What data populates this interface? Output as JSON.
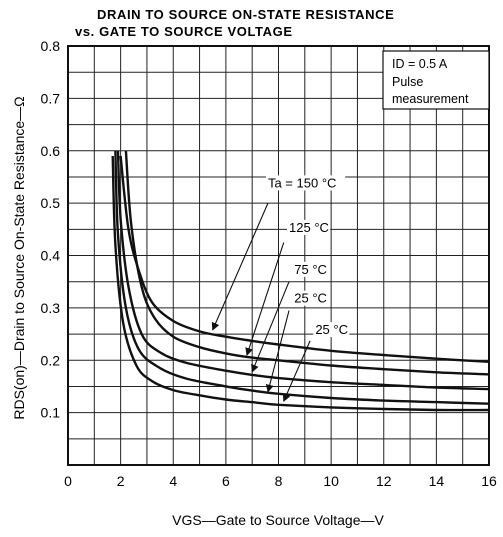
{
  "chart_data": {
    "type": "line",
    "title_line1": "DRAIN TO SOURCE ON-STATE RESISTANCE",
    "title_line2": "vs. GATE TO SOURCE VOLTAGE",
    "xlabel": "VGS—Gate to Source Voltage—V",
    "ylabel": "RDS(on)—Drain to Source On-State Resistance—Ω",
    "xlim": [
      0,
      16
    ],
    "ylim": [
      0,
      0.8
    ],
    "x_ticks": [
      "0",
      "2",
      "4",
      "6",
      "8",
      "10",
      "12",
      "14",
      "16"
    ],
    "y_ticks": [
      "0.1",
      "0.2",
      "0.3",
      "0.4",
      "0.5",
      "0.6",
      "0.7",
      "0.8"
    ],
    "grid": true,
    "conditions": [
      "ID = 0.5 A",
      "Pulse",
      "measurement"
    ],
    "series": [
      {
        "name": "Ta = 150 °C",
        "points": [
          [
            2.0,
            0.59
          ],
          [
            2.3,
            0.45
          ],
          [
            2.7,
            0.37
          ],
          [
            3.2,
            0.31
          ],
          [
            4,
            0.275
          ],
          [
            5,
            0.255
          ],
          [
            6,
            0.245
          ],
          [
            7,
            0.237
          ],
          [
            8,
            0.23
          ],
          [
            10,
            0.218
          ],
          [
            12,
            0.21
          ],
          [
            14,
            0.203
          ],
          [
            16,
            0.197
          ]
        ]
      },
      {
        "name": "125 °C",
        "points": [
          [
            2.2,
            0.6
          ],
          [
            2.4,
            0.46
          ],
          [
            2.8,
            0.34
          ],
          [
            3.3,
            0.28
          ],
          [
            4,
            0.245
          ],
          [
            5,
            0.225
          ],
          [
            6,
            0.213
          ],
          [
            7,
            0.205
          ],
          [
            8,
            0.2
          ],
          [
            10,
            0.19
          ],
          [
            12,
            0.183
          ],
          [
            14,
            0.177
          ],
          [
            16,
            0.173
          ]
        ]
      },
      {
        "name": "75 °C",
        "points": [
          [
            1.9,
            0.6
          ],
          [
            2.0,
            0.47
          ],
          [
            2.3,
            0.34
          ],
          [
            2.8,
            0.25
          ],
          [
            3.5,
            0.215
          ],
          [
            4.5,
            0.195
          ],
          [
            6,
            0.18
          ],
          [
            7,
            0.172
          ],
          [
            8,
            0.166
          ],
          [
            10,
            0.158
          ],
          [
            12,
            0.153
          ],
          [
            14,
            0.148
          ],
          [
            16,
            0.145
          ]
        ]
      },
      {
        "name": "25 °C",
        "points": [
          [
            1.8,
            0.6
          ],
          [
            1.9,
            0.44
          ],
          [
            2.2,
            0.3
          ],
          [
            2.7,
            0.22
          ],
          [
            3.5,
            0.185
          ],
          [
            4.5,
            0.165
          ],
          [
            6,
            0.15
          ],
          [
            7,
            0.142
          ],
          [
            8,
            0.136
          ],
          [
            10,
            0.128
          ],
          [
            12,
            0.123
          ],
          [
            14,
            0.12
          ],
          [
            16,
            0.117
          ]
        ]
      },
      {
        "name": "25 °C",
        "points": [
          [
            1.7,
            0.59
          ],
          [
            1.8,
            0.42
          ],
          [
            2.1,
            0.27
          ],
          [
            2.6,
            0.19
          ],
          [
            3.2,
            0.16
          ],
          [
            4,
            0.143
          ],
          [
            5,
            0.133
          ],
          [
            6,
            0.125
          ],
          [
            7,
            0.12
          ],
          [
            8,
            0.115
          ],
          [
            10,
            0.11
          ],
          [
            12,
            0.107
          ],
          [
            14,
            0.105
          ],
          [
            16,
            0.105
          ]
        ]
      }
    ],
    "annotations": [
      {
        "text": "Ta = 150 °C",
        "label_pos": [
          7.6,
          0.53
        ],
        "arrow_from": [
          7.6,
          0.5
        ],
        "arrow_to": [
          5.5,
          0.258
        ]
      },
      {
        "text": "125 °C",
        "label_pos": [
          8.4,
          0.445
        ],
        "arrow_from": [
          8.2,
          0.425
        ],
        "arrow_to": [
          6.8,
          0.21
        ]
      },
      {
        "text": "75 °C",
        "label_pos": [
          8.6,
          0.365
        ],
        "arrow_from": [
          8.4,
          0.35
        ],
        "arrow_to": [
          7.0,
          0.178
        ]
      },
      {
        "text": "25 °C",
        "label_pos": [
          8.6,
          0.31
        ],
        "arrow_from": [
          8.4,
          0.295
        ],
        "arrow_to": [
          7.6,
          0.14
        ]
      },
      {
        "text": "25 °C",
        "label_pos": [
          9.4,
          0.25
        ],
        "arrow_from": [
          9.2,
          0.237
        ],
        "arrow_to": [
          8.2,
          0.122
        ]
      }
    ]
  }
}
